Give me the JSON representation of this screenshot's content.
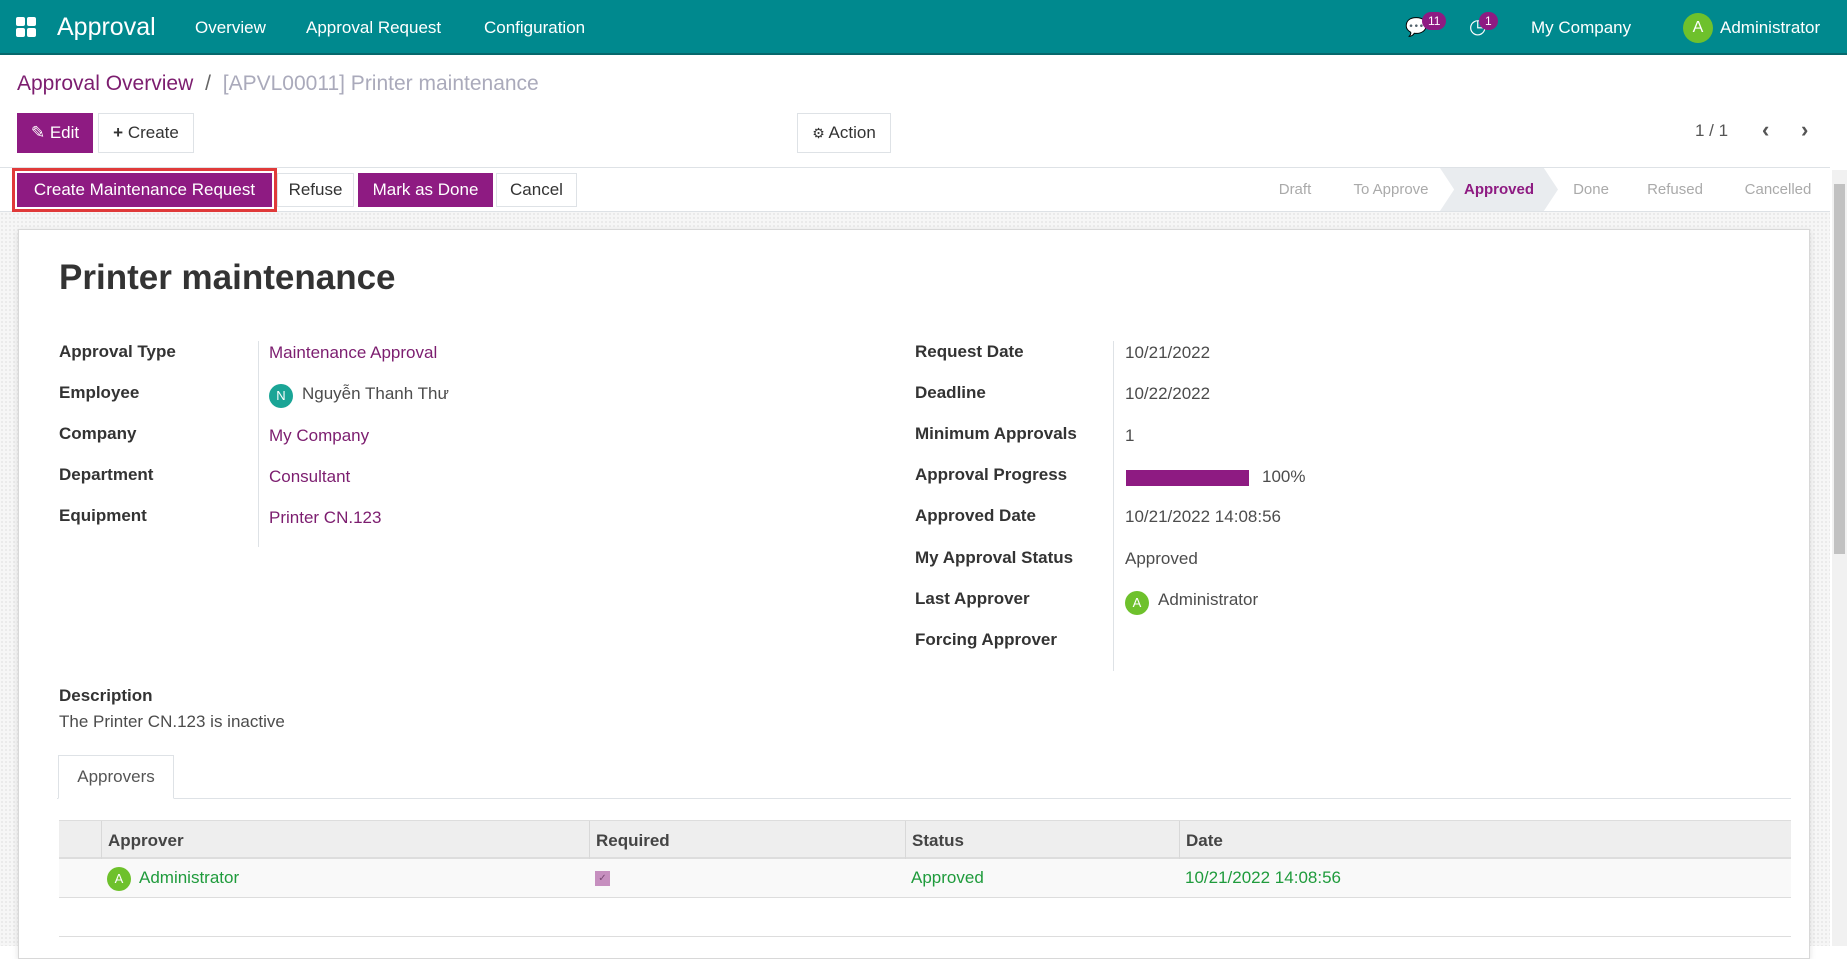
{
  "navbar": {
    "app_name": "Approval",
    "menu": [
      "Overview",
      "Approval Request",
      "Configuration"
    ],
    "messages_count": "11",
    "activities_count": "1",
    "company": "My Company",
    "user": "Administrator",
    "user_initial": "A"
  },
  "breadcrumb": {
    "parent": "Approval Overview",
    "separator": "/",
    "current": "[APVL00011] Printer maintenance"
  },
  "control": {
    "edit": "Edit",
    "create": "Create",
    "action": "Action",
    "pager": "1 / 1"
  },
  "statusbar": {
    "buttons": [
      "Create Maintenance Request",
      "Refuse",
      "Mark as Done",
      "Cancel"
    ],
    "stages": [
      "Draft",
      "To Approve",
      "Approved",
      "Done",
      "Refused",
      "Cancelled"
    ],
    "active_stage": "Approved"
  },
  "form": {
    "title": "Printer maintenance",
    "left": [
      {
        "label": "Approval Type",
        "value": "Maintenance Approval"
      },
      {
        "label": "Employee",
        "value": "Nguyễn Thanh Thư",
        "initial": "N"
      },
      {
        "label": "Company",
        "value": "My Company"
      },
      {
        "label": "Department",
        "value": "Consultant"
      },
      {
        "label": "Equipment",
        "value": "Printer CN.123"
      }
    ],
    "right": [
      {
        "label": "Request Date",
        "value": "10/21/2022"
      },
      {
        "label": "Deadline",
        "value": "10/22/2022"
      },
      {
        "label": "Minimum Approvals",
        "value": "1"
      },
      {
        "label": "Approval Progress",
        "value": "100%",
        "progress": 100
      },
      {
        "label": "Approved Date",
        "value": "10/21/2022 14:08:56"
      },
      {
        "label": "My Approval Status",
        "value": "Approved"
      },
      {
        "label": "Last Approver",
        "value": "Administrator",
        "initial": "A"
      },
      {
        "label": "Forcing Approver",
        "value": ""
      }
    ],
    "description_label": "Description",
    "description": "The Printer CN.123 is inactive",
    "tab": "Approvers",
    "table": {
      "headers": [
        "Approver",
        "Required",
        "Status",
        "Date"
      ],
      "rows": [
        {
          "initial": "A",
          "approver": "Administrator",
          "required": true,
          "status": "Approved",
          "date": "10/21/2022 14:08:56"
        }
      ]
    }
  },
  "colors": {
    "navbar": "#00898e",
    "primary": "#8e1b82",
    "approved": "#1f9b3c"
  }
}
